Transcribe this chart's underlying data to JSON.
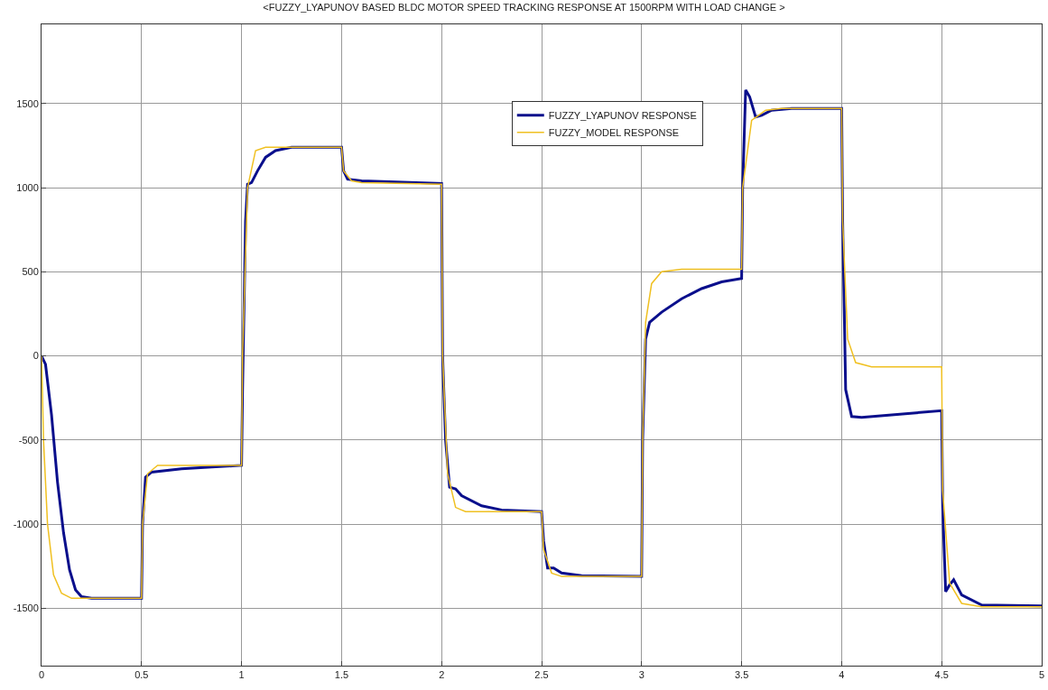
{
  "chart_data": {
    "type": "line",
    "title": "<FUZZY_LYAPUNOV BASED BLDC MOTOR SPEED TRACKING RESPONSE AT 1500RPM WITH LOAD CHANGE >",
    "xlim": [
      0,
      5
    ],
    "xticks": [
      0,
      0.5,
      1,
      1.5,
      2,
      2.5,
      3,
      3.5,
      4,
      4.5,
      5
    ],
    "ylim": [
      -1840,
      1970
    ],
    "yticks": [
      -1500,
      -1000,
      -500,
      0,
      500,
      1000,
      1500
    ],
    "grid": true,
    "legend": "top",
    "line_style": "solid",
    "marker": "none",
    "series": [
      {
        "name": "FUZZY_LYAPUNOV RESPONSE",
        "color": "#0a0f8c",
        "x": [
          0,
          0.02,
          0.05,
          0.08,
          0.11,
          0.14,
          0.17,
          0.2,
          0.25,
          0.5,
          0.505,
          0.52,
          0.55,
          0.7,
          1.0,
          1.005,
          1.02,
          1.03,
          1.05,
          1.08,
          1.12,
          1.17,
          1.25,
          1.5,
          1.51,
          1.53,
          1.6,
          2.0,
          2.005,
          2.02,
          2.04,
          2.07,
          2.1,
          2.2,
          2.3,
          2.5,
          2.51,
          2.53,
          2.56,
          2.6,
          2.7,
          3.0,
          3.005,
          3.02,
          3.04,
          3.1,
          3.2,
          3.3,
          3.4,
          3.5,
          3.505,
          3.52,
          3.54,
          3.57,
          3.6,
          3.65,
          3.75,
          4.0,
          4.005,
          4.02,
          4.05,
          4.1,
          4.5,
          4.505,
          4.52,
          4.54,
          4.56,
          4.6,
          4.7,
          5
        ],
        "values": [
          0,
          -50,
          -350,
          -750,
          -1050,
          -1270,
          -1390,
          -1430,
          -1440,
          -1440,
          -1000,
          -720,
          -690,
          -670,
          -650,
          -200,
          800,
          1020,
          1030,
          1100,
          1180,
          1220,
          1240,
          1240,
          1100,
          1050,
          1040,
          1025,
          0,
          -500,
          -780,
          -790,
          -830,
          -890,
          -915,
          -925,
          -1100,
          -1260,
          -1260,
          -1290,
          -1305,
          -1310,
          -500,
          100,
          200,
          260,
          340,
          400,
          440,
          460,
          1000,
          1580,
          1540,
          1420,
          1430,
          1460,
          1470,
          1470,
          800,
          -200,
          -360,
          -365,
          -325,
          -900,
          -1400,
          -1360,
          -1330,
          -1420,
          -1480,
          -1485
        ]
      },
      {
        "name": "FUZZY_MODEL RESPONSE",
        "color": "#f0c020",
        "x": [
          0,
          0.01,
          0.03,
          0.06,
          0.1,
          0.15,
          0.5,
          0.505,
          0.53,
          0.58,
          1.0,
          1.005,
          1.03,
          1.07,
          1.12,
          1.5,
          1.51,
          1.55,
          1.6,
          2.0,
          2.005,
          2.03,
          2.07,
          2.12,
          2.5,
          2.51,
          2.55,
          2.6,
          3.0,
          3.005,
          3.02,
          3.05,
          3.1,
          3.2,
          3.5,
          3.505,
          3.55,
          3.62,
          3.7,
          4.0,
          4.005,
          4.03,
          4.07,
          4.15,
          4.5,
          4.505,
          4.54,
          4.6,
          4.7,
          5
        ],
        "values": [
          0,
          -500,
          -1000,
          -1300,
          -1410,
          -1440,
          -1440,
          -1000,
          -700,
          -650,
          -650,
          0,
          1000,
          1220,
          1240,
          1240,
          1100,
          1040,
          1030,
          1020,
          0,
          -700,
          -900,
          -925,
          -925,
          -1150,
          -1290,
          -1310,
          -1310,
          -500,
          200,
          430,
          500,
          515,
          515,
          1000,
          1400,
          1460,
          1470,
          1470,
          800,
          100,
          -40,
          -65,
          -65,
          -800,
          -1350,
          -1470,
          -1490,
          -1490
        ]
      }
    ]
  }
}
